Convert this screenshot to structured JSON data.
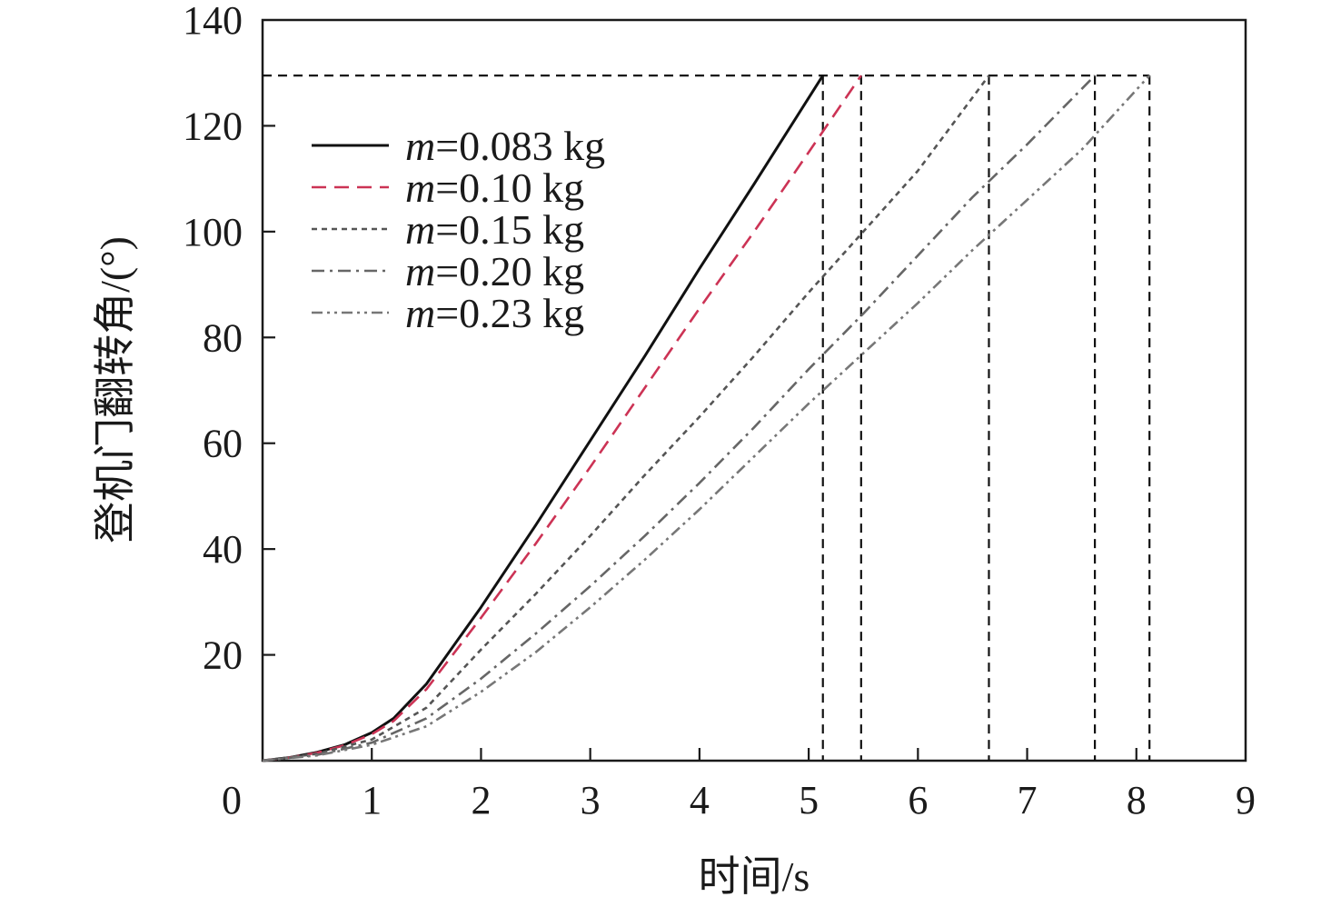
{
  "chart_data": {
    "type": "line",
    "title": "",
    "xlabel": "时间/s",
    "ylabel": "登机门翻转角/(°)",
    "xlim": [
      0,
      9
    ],
    "ylim": [
      0,
      140
    ],
    "x_ticks": [
      "0",
      "1",
      "2",
      "3",
      "4",
      "5",
      "6",
      "7",
      "8",
      "9"
    ],
    "y_ticks": [
      "20",
      "40",
      "60",
      "80",
      "100",
      "120",
      "140"
    ],
    "grid": false,
    "legend_position": "top-left",
    "target_angle": 129.5,
    "series": [
      {
        "name_prefix": "m",
        "name_suffix": "=0.083 kg",
        "color": "#111111",
        "dash": "solid",
        "x": [
          0,
          0.25,
          0.5,
          0.75,
          1.0,
          1.2,
          1.5,
          2.0,
          2.5,
          3.0,
          3.5,
          4.0,
          4.5,
          5.13
        ],
        "y": [
          0,
          0.6,
          1.6,
          3.0,
          5.3,
          8.0,
          14.5,
          29.0,
          44.5,
          60.5,
          76.5,
          93.0,
          109.0,
          129.5
        ]
      },
      {
        "name_prefix": "m",
        "name_suffix": "=0.10 kg",
        "color": "#cc3355",
        "dash": "long-dash",
        "x": [
          0,
          0.25,
          0.5,
          0.75,
          1.0,
          1.2,
          1.5,
          2.0,
          2.5,
          3.0,
          3.5,
          4.0,
          4.5,
          5.0,
          5.48
        ],
        "y": [
          0,
          0.6,
          1.5,
          2.9,
          5.0,
          7.5,
          13.5,
          27.0,
          41.0,
          55.5,
          70.5,
          85.5,
          100.0,
          115.0,
          129.5
        ]
      },
      {
        "name_prefix": "m",
        "name_suffix": "=0.15 kg",
        "color": "#555555",
        "dash": "short-dash",
        "x": [
          0,
          0.5,
          1.0,
          1.5,
          2.0,
          2.5,
          3.0,
          3.5,
          4.0,
          4.5,
          5.0,
          5.5,
          6.0,
          6.65
        ],
        "y": [
          0,
          1.3,
          4.0,
          10.0,
          21.0,
          31.5,
          42.5,
          54.0,
          65.0,
          76.5,
          88.5,
          100.0,
          111.5,
          129.5
        ]
      },
      {
        "name_prefix": "m",
        "name_suffix": "=0.20 kg",
        "color": "#666666",
        "dash": "dash-dot",
        "x": [
          0,
          0.5,
          1.0,
          1.5,
          2.0,
          2.5,
          3.0,
          3.5,
          4.0,
          4.5,
          5.0,
          5.5,
          6.0,
          6.5,
          7.0,
          7.62
        ],
        "y": [
          0,
          1.1,
          3.4,
          8.0,
          15.5,
          24.0,
          33.0,
          42.5,
          52.5,
          63.0,
          74.0,
          84.5,
          95.5,
          106.5,
          116.5,
          129.5
        ]
      },
      {
        "name_prefix": "m",
        "name_suffix": "=0.23 kg",
        "color": "#777777",
        "dash": "dash-dot-dot",
        "x": [
          0,
          0.5,
          1.0,
          1.5,
          2.0,
          2.5,
          3.0,
          3.5,
          4.0,
          4.5,
          5.0,
          5.5,
          6.0,
          6.5,
          7.0,
          7.5,
          8.12
        ],
        "y": [
          0,
          1.0,
          3.0,
          6.5,
          13.0,
          20.5,
          29.0,
          38.0,
          47.5,
          57.5,
          67.5,
          77.0,
          86.5,
          96.5,
          106.0,
          115.5,
          129.5
        ]
      }
    ],
    "reference_lines": {
      "color": "#111111",
      "dash": "dashed",
      "vertical_x": [
        5.13,
        5.48,
        6.65,
        7.62,
        8.12
      ]
    }
  }
}
